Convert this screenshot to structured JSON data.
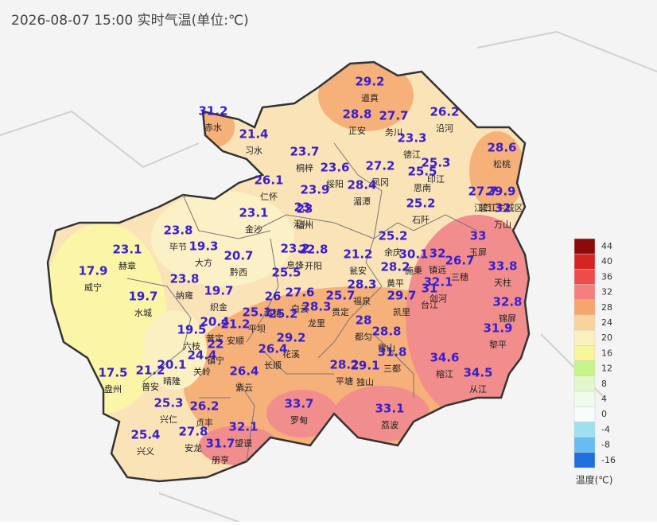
{
  "title": "2026-08-07 15:00 实时气温(单位:℃)",
  "legend": {
    "title": "温度(℃)",
    "items": [
      {
        "value": 44,
        "color": "#8c0a0a"
      },
      {
        "value": 40,
        "color": "#d42424"
      },
      {
        "value": 36,
        "color": "#ee4b4b"
      },
      {
        "value": 32,
        "color": "#f47f7f"
      },
      {
        "value": 28,
        "color": "#f6a66c"
      },
      {
        "value": 24,
        "color": "#f9d39c"
      },
      {
        "value": 20,
        "color": "#fcf0c0"
      },
      {
        "value": 16,
        "color": "#f7f59a"
      },
      {
        "value": 12,
        "color": "#c8f58a"
      },
      {
        "value": 8,
        "color": "#dff8cb"
      },
      {
        "value": 4,
        "color": "#effbeb"
      },
      {
        "value": 0,
        "color": "#f7fdfd"
      },
      {
        "value": -4,
        "color": "#9fe0f0"
      },
      {
        "value": -8,
        "color": "#68bcf0"
      },
      {
        "value": -16,
        "color": "#1f6fe0"
      }
    ]
  },
  "stations": [
    {
      "name": "道真",
      "temp": 29.2
    },
    {
      "name": "赤水",
      "temp": 31.2
    },
    {
      "name": "正安",
      "temp": 28.8
    },
    {
      "name": "务川",
      "temp": 27.7
    },
    {
      "name": "沿河",
      "temp": 26.2
    },
    {
      "name": "习水",
      "temp": 21.4
    },
    {
      "name": "德江",
      "temp": 23.3
    },
    {
      "name": "松桃",
      "temp": 28.6
    },
    {
      "name": "桐梓",
      "temp": 23.7
    },
    {
      "name": "绥阳",
      "temp": 23.6
    },
    {
      "name": "凤冈",
      "temp": 27.2
    },
    {
      "name": "印江",
      "temp": 25.3
    },
    {
      "name": "思南",
      "temp": 25.5
    },
    {
      "name": "仁怀",
      "temp": 26.1
    },
    {
      "name": null,
      "temp": 23.9
    },
    {
      "name": "汇川",
      "temp": 23
    },
    {
      "name": "湄潭",
      "temp": 28.4
    },
    {
      "name": "江口",
      "temp": 27.7
    },
    {
      "name": "碧江主城区",
      "temp": 29.9
    },
    {
      "name": "石阡",
      "temp": 25.2
    },
    {
      "name": "金沙",
      "temp": 23.1
    },
    {
      "name": "播州",
      "temp": 23
    },
    {
      "name": "毕节",
      "temp": 23.8
    },
    {
      "name": "大方",
      "temp": 19.3
    },
    {
      "name": "赫章",
      "temp": 23.1
    },
    {
      "name": "黔西",
      "temp": 20.7
    },
    {
      "name": "威宁",
      "temp": 17.9
    },
    {
      "name": "息烽",
      "temp": 23.2
    },
    {
      "name": "开阳",
      "temp": 22.8
    },
    {
      "name": "瓮安",
      "temp": 21.2
    },
    {
      "name": "余庆",
      "temp": 25.2
    },
    {
      "name": "施秉",
      "temp": 30.1
    },
    {
      "name": "镇远",
      "temp": 32
    },
    {
      "name": "黄平",
      "temp": 28.2
    },
    {
      "name": "玉屏",
      "temp": 33
    },
    {
      "name": "三穗",
      "temp": 26.7
    },
    {
      "name": "万山",
      "temp": 32
    },
    {
      "name": "纳雍",
      "temp": 23.8
    },
    {
      "name": null,
      "temp": 25.5
    },
    {
      "name": "水城",
      "temp": 19.7
    },
    {
      "name": "织金",
      "temp": 19.7
    },
    {
      "name": "清镇",
      "temp": 26
    },
    {
      "name": "白云",
      "temp": 27.6
    },
    {
      "name": null,
      "temp": 25.2
    },
    {
      "name": "龙里",
      "temp": 28.3
    },
    {
      "name": "贵定",
      "temp": 25.7
    },
    {
      "name": "福泉",
      "temp": 28.3
    },
    {
      "name": "凯里",
      "temp": 29.7
    },
    {
      "name": "剑河",
      "temp": 32.1
    },
    {
      "name": "台江",
      "temp": 31
    },
    {
      "name": "平坝",
      "temp": 25.1
    },
    {
      "name": "普定",
      "temp": 20.4
    },
    {
      "name": "安顺",
      "temp": 21.2
    },
    {
      "name": "六枝",
      "temp": 19.5
    },
    {
      "name": "花溪",
      "temp": 29.2
    },
    {
      "name": "都匀",
      "temp": 28
    },
    {
      "name": "雷山",
      "temp": 28.8
    },
    {
      "name": "三都",
      "temp": 31.8
    },
    {
      "name": "镇宁",
      "temp": 22
    },
    {
      "name": "关岭",
      "temp": 24.4
    },
    {
      "name": "长顺",
      "temp": 26.4
    },
    {
      "name": "黎平",
      "temp": 31.9
    },
    {
      "name": "锦屏",
      "temp": 32.8
    },
    {
      "name": "天柱",
      "temp": 33.8
    },
    {
      "name": "榕江",
      "temp": 34.6
    },
    {
      "name": "从江",
      "temp": 34.5
    },
    {
      "name": "盘州",
      "temp": 17.5
    },
    {
      "name": "普安",
      "temp": 21.2
    },
    {
      "name": "晴隆",
      "temp": 20.1
    },
    {
      "name": "紫云",
      "temp": 26.4
    },
    {
      "name": "平塘",
      "temp": 28.2
    },
    {
      "name": "独山",
      "temp": 29.1
    },
    {
      "name": "兴仁",
      "temp": 25.3
    },
    {
      "name": "贞丰",
      "temp": 26.2
    },
    {
      "name": "望谟",
      "temp": 32.1
    },
    {
      "name": "罗甸",
      "temp": 33.7
    },
    {
      "name": "荔波",
      "temp": 33.1
    },
    {
      "name": "兴义",
      "temp": 25.4
    },
    {
      "name": "安龙",
      "temp": 27.8
    },
    {
      "name": "册亨",
      "temp": 31.7
    }
  ]
}
